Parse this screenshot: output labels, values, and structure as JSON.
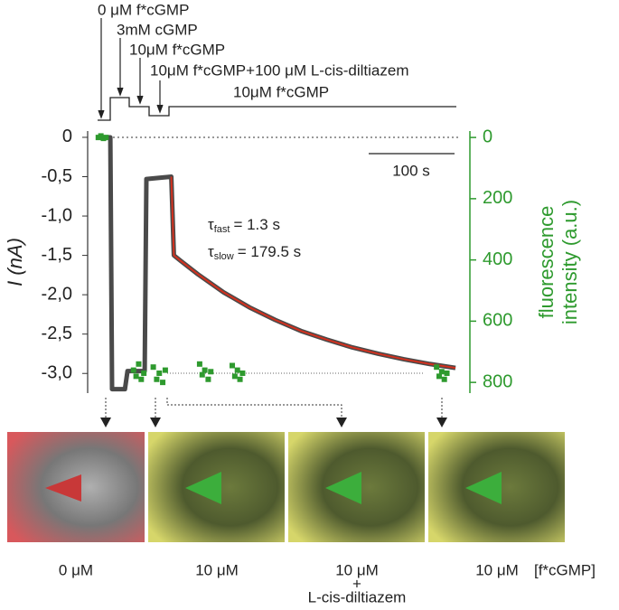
{
  "chart_data": {
    "type": "line",
    "stimuli": [
      "0 μM f*cGMP",
      "3mM cGMP",
      "10μM f*cGMP",
      "10μM f*cGMP+100 μM L-cis-diltiazem",
      "10μM f*cGMP"
    ],
    "y_label": "I (nA)",
    "y2_label": [
      "fluorescence",
      "intensity (a.u.)"
    ],
    "scale_bar": "100 s",
    "tau_fast": {
      "symbol": "τ",
      "sub": "fast",
      "text": "= 1.3 s"
    },
    "tau_slow": {
      "symbol": "τ",
      "sub": "slow",
      "text": "= 179.5 s"
    },
    "xlim": [
      0,
      421
    ],
    "ylim": [
      -3.25,
      0.08
    ],
    "yticks": [
      0,
      {
        "value": -0.5,
        "label": "-0,5"
      },
      {
        "value": -1.0,
        "label": "-1,0"
      },
      {
        "value": -1.5,
        "label": "-1,5"
      },
      {
        "value": -2.0,
        "label": "-2,0"
      },
      {
        "value": -2.5,
        "label": "-2,5"
      },
      {
        "value": -3.0,
        "label": "-3,0"
      }
    ],
    "y2lim": [
      835,
      -21
    ],
    "y2ticks": [
      0,
      200,
      400,
      600,
      800
    ],
    "series": [
      {
        "name": "current",
        "color": "#4a4a4a",
        "x": [
          3,
          18,
          20,
          35,
          38,
          58,
          60,
          89,
          92,
          100,
          120,
          150,
          180,
          210,
          240,
          270,
          300,
          330,
          360,
          390,
          420
        ],
        "values": [
          0,
          0,
          -3.2,
          -3.2,
          -2.97,
          -2.97,
          -0.53,
          -0.5,
          -1.5,
          -1.57,
          -1.74,
          -1.97,
          -2.16,
          -2.32,
          -2.46,
          -2.57,
          -2.67,
          -2.75,
          -2.82,
          -2.88,
          -2.93
        ]
      },
      {
        "name": "fit",
        "color": "#d2301e",
        "x": [
          89,
          92,
          100,
          120,
          150,
          180,
          210,
          240,
          270,
          300,
          330,
          360,
          390,
          420
        ],
        "values": [
          -0.5,
          -1.5,
          -1.57,
          -1.74,
          -1.97,
          -2.16,
          -2.32,
          -2.46,
          -2.57,
          -2.67,
          -2.75,
          -2.82,
          -2.88,
          -2.93
        ]
      },
      {
        "name": "fluorescence",
        "color": "#2e9a2e",
        "axis": "y2",
        "x": [
          4,
          7,
          10,
          13,
          45,
          48,
          51,
          54,
          57,
          68,
          72,
          75,
          79,
          82,
          122,
          125,
          128,
          132,
          135,
          160,
          163,
          166,
          169,
          172,
          398,
          401,
          404,
          407,
          410
        ],
        "values": [
          0,
          -5,
          3,
          0,
          760,
          780,
          740,
          790,
          770,
          750,
          790,
          770,
          800,
          760,
          740,
          775,
          760,
          790,
          765,
          745,
          780,
          760,
          790,
          770,
          750,
          780,
          765,
          790,
          770
        ]
      }
    ],
    "images": [
      {
        "caption": [
          "0 μM"
        ]
      },
      {
        "caption": [
          "10 μM"
        ]
      },
      {
        "caption": [
          "10 μM",
          "+",
          "L-cis-diltiazem"
        ]
      },
      {
        "caption": [
          "10 μM"
        ]
      }
    ],
    "caption_unit": "[f*cGMP]"
  }
}
